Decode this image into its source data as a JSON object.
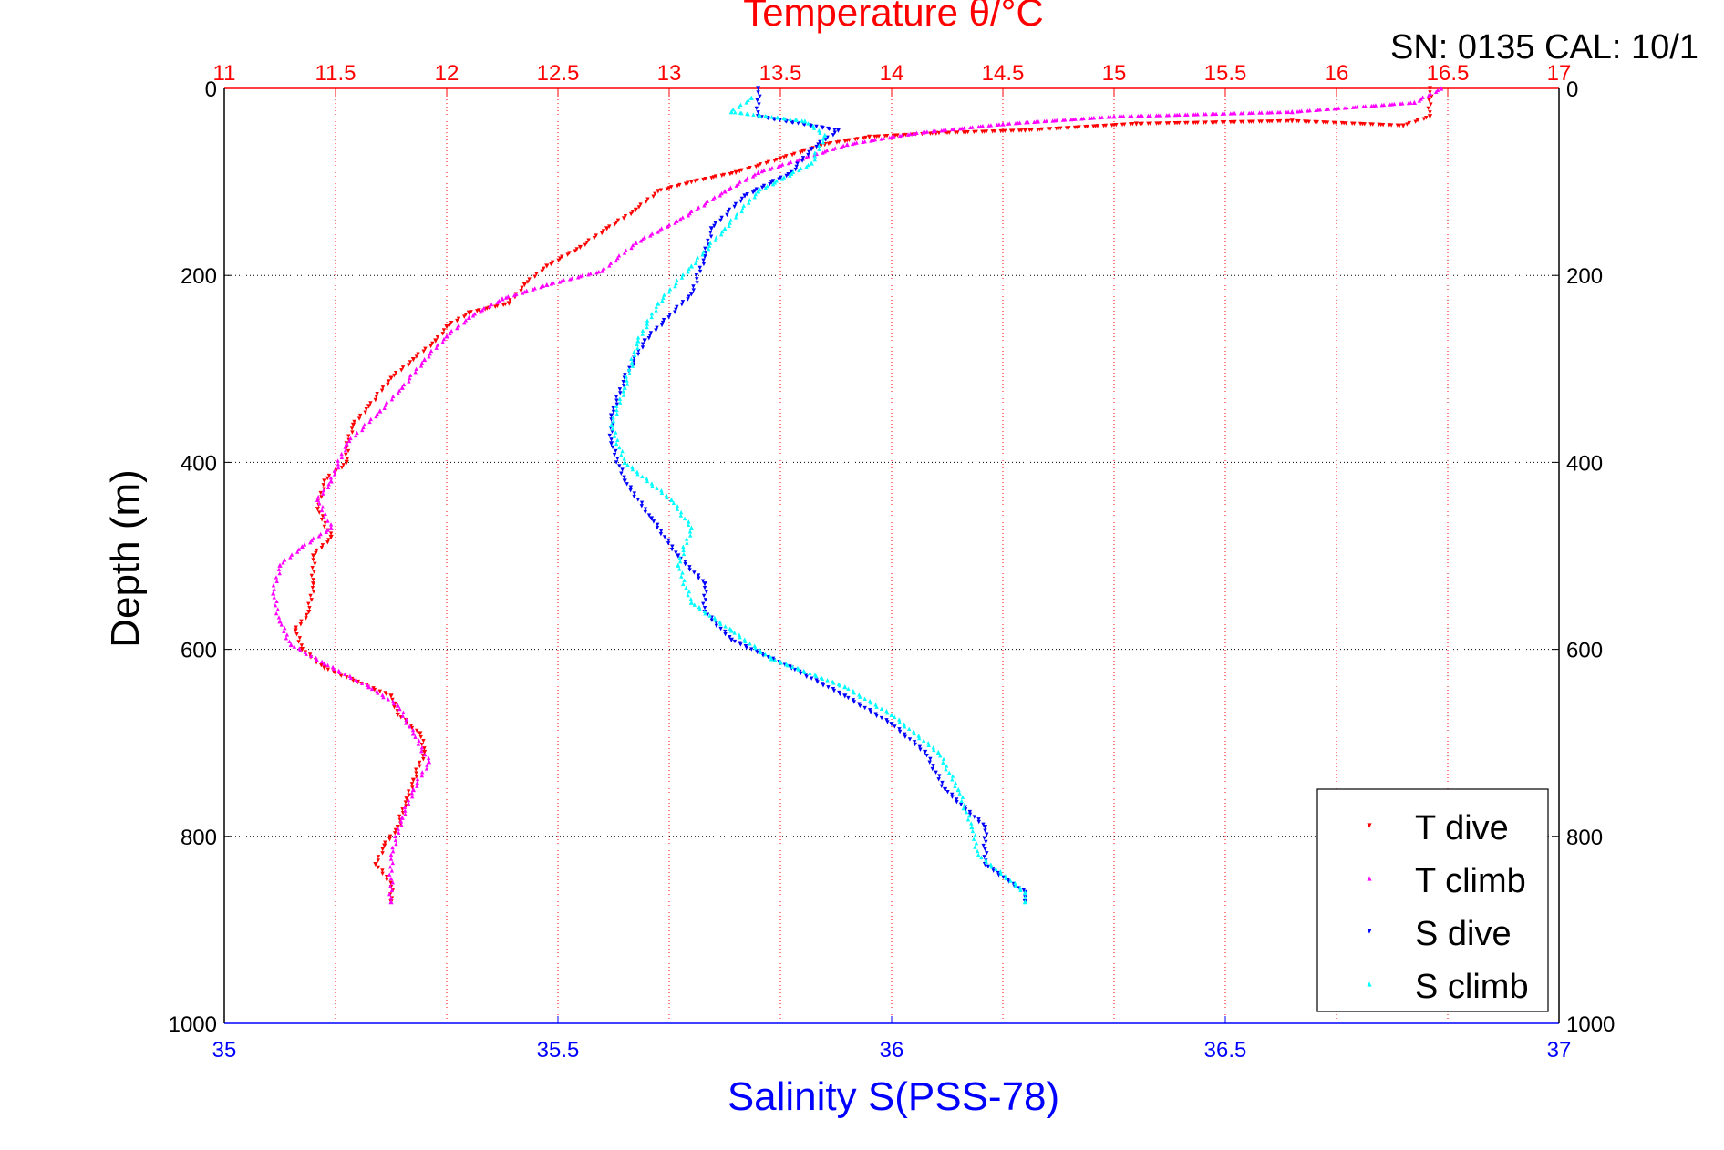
{
  "header": {
    "serial_text": "SN: 0135  CAL: 10/1"
  },
  "chart_data": {
    "type": "scatter",
    "title": "Temperature θ/°C",
    "top_axis": {
      "label": "Temperature θ/°C",
      "range": [
        11,
        17
      ],
      "ticks": [
        11,
        11.5,
        12,
        12.5,
        13,
        13.5,
        14,
        14.5,
        15,
        15.5,
        16,
        16.5,
        17
      ],
      "tick_labels": [
        "11",
        "11.5",
        "12",
        "12.5",
        "13",
        "13.5",
        "14",
        "14.5",
        "15",
        "15.5",
        "16",
        "16.5",
        "17"
      ],
      "color": "#ff0000"
    },
    "bottom_axis": {
      "label": "Salinity S(PSS-78)",
      "range": [
        35,
        37
      ],
      "ticks": [
        35,
        35.5,
        36,
        36.5,
        37
      ],
      "tick_labels": [
        "35",
        "35.5",
        "36",
        "36.5",
        "37"
      ],
      "color": "#0000ff"
    },
    "y_axis": {
      "label": "Depth (m)",
      "range": [
        0,
        1000
      ],
      "inverted": true,
      "ticks": [
        0,
        200,
        400,
        600,
        800,
        1000
      ],
      "tick_labels": [
        "0",
        "200",
        "400",
        "600",
        "800",
        "1000"
      ]
    },
    "grid": true,
    "legend": {
      "placement": "bottom-right",
      "entries": [
        "T dive",
        "T climb",
        "S dive",
        "S climb"
      ]
    },
    "series": [
      {
        "name": "T dive",
        "axis": "temperature",
        "color": "#ff0000",
        "marker": "triangle-down",
        "points": [
          [
            16.42,
            0
          ],
          [
            16.42,
            30
          ],
          [
            16.3,
            40
          ],
          [
            15.8,
            35
          ],
          [
            15.1,
            38
          ],
          [
            14.6,
            45
          ],
          [
            14.2,
            48
          ],
          [
            13.9,
            52
          ],
          [
            13.7,
            60
          ],
          [
            13.5,
            75
          ],
          [
            13.3,
            90
          ],
          [
            13.1,
            100
          ],
          [
            12.95,
            110
          ],
          [
            12.85,
            130
          ],
          [
            12.72,
            150
          ],
          [
            12.6,
            170
          ],
          [
            12.45,
            190
          ],
          [
            12.35,
            210
          ],
          [
            12.28,
            230
          ],
          [
            12.1,
            240
          ],
          [
            12.0,
            255
          ],
          [
            11.95,
            270
          ],
          [
            11.85,
            290
          ],
          [
            11.75,
            310
          ],
          [
            11.65,
            340
          ],
          [
            11.58,
            360
          ],
          [
            11.55,
            380
          ],
          [
            11.55,
            400
          ],
          [
            11.45,
            420
          ],
          [
            11.42,
            450
          ],
          [
            11.48,
            480
          ],
          [
            11.4,
            500
          ],
          [
            11.4,
            530
          ],
          [
            11.38,
            560
          ],
          [
            11.32,
            580
          ],
          [
            11.35,
            600
          ],
          [
            11.45,
            620
          ],
          [
            11.6,
            635
          ],
          [
            11.75,
            650
          ],
          [
            11.78,
            670
          ],
          [
            11.88,
            690
          ],
          [
            11.9,
            710
          ],
          [
            11.85,
            740
          ],
          [
            11.82,
            760
          ],
          [
            11.78,
            790
          ],
          [
            11.72,
            810
          ],
          [
            11.68,
            830
          ],
          [
            11.75,
            850
          ],
          [
            11.75,
            870
          ]
        ]
      },
      {
        "name": "T climb",
        "axis": "temperature",
        "color": "#ff00ff",
        "marker": "triangle-up",
        "points": [
          [
            16.47,
            0
          ],
          [
            16.35,
            15
          ],
          [
            15.8,
            25
          ],
          [
            15.0,
            30
          ],
          [
            14.5,
            38
          ],
          [
            14.1,
            48
          ],
          [
            13.8,
            60
          ],
          [
            13.6,
            75
          ],
          [
            13.4,
            90
          ],
          [
            13.25,
            110
          ],
          [
            13.05,
            140
          ],
          [
            12.85,
            165
          ],
          [
            12.7,
            195
          ],
          [
            12.45,
            210
          ],
          [
            12.25,
            225
          ],
          [
            12.1,
            245
          ],
          [
            12.0,
            265
          ],
          [
            11.9,
            290
          ],
          [
            11.8,
            320
          ],
          [
            11.7,
            345
          ],
          [
            11.55,
            380
          ],
          [
            11.48,
            420
          ],
          [
            11.42,
            440
          ],
          [
            11.48,
            470
          ],
          [
            11.35,
            490
          ],
          [
            11.25,
            510
          ],
          [
            11.22,
            540
          ],
          [
            11.25,
            570
          ],
          [
            11.3,
            595
          ],
          [
            11.45,
            615
          ],
          [
            11.65,
            640
          ],
          [
            11.78,
            660
          ],
          [
            11.85,
            690
          ],
          [
            11.92,
            720
          ],
          [
            11.85,
            750
          ],
          [
            11.8,
            780
          ],
          [
            11.75,
            820
          ],
          [
            11.75,
            870
          ]
        ]
      },
      {
        "name": "S dive",
        "axis": "salinity",
        "color": "#0000ff",
        "marker": "triangle-down",
        "points": [
          [
            35.8,
            0
          ],
          [
            35.8,
            30
          ],
          [
            35.92,
            45
          ],
          [
            35.88,
            65
          ],
          [
            35.85,
            90
          ],
          [
            35.78,
            115
          ],
          [
            35.73,
            150
          ],
          [
            35.72,
            180
          ],
          [
            35.7,
            220
          ],
          [
            35.63,
            270
          ],
          [
            35.6,
            310
          ],
          [
            35.58,
            350
          ],
          [
            35.58,
            380
          ],
          [
            35.6,
            420
          ],
          [
            35.64,
            460
          ],
          [
            35.68,
            500
          ],
          [
            35.72,
            530
          ],
          [
            35.72,
            560
          ],
          [
            35.76,
            590
          ],
          [
            35.85,
            620
          ],
          [
            35.93,
            650
          ],
          [
            36.0,
            680
          ],
          [
            36.05,
            710
          ],
          [
            36.08,
            750
          ],
          [
            36.14,
            790
          ],
          [
            36.14,
            830
          ],
          [
            36.2,
            860
          ],
          [
            36.2,
            870
          ]
        ]
      },
      {
        "name": "S climb",
        "axis": "salinity",
        "color": "#00ffff",
        "marker": "triangle-up",
        "points": [
          [
            35.79,
            10
          ],
          [
            35.76,
            25
          ],
          [
            35.87,
            35
          ],
          [
            35.9,
            50
          ],
          [
            35.88,
            80
          ],
          [
            35.8,
            110
          ],
          [
            35.75,
            150
          ],
          [
            35.7,
            190
          ],
          [
            35.65,
            230
          ],
          [
            35.62,
            270
          ],
          [
            35.6,
            320
          ],
          [
            35.58,
            360
          ],
          [
            35.6,
            400
          ],
          [
            35.67,
            440
          ],
          [
            35.7,
            470
          ],
          [
            35.68,
            510
          ],
          [
            35.7,
            550
          ],
          [
            35.76,
            580
          ],
          [
            35.82,
            610
          ],
          [
            35.93,
            640
          ],
          [
            36.0,
            670
          ],
          [
            36.07,
            710
          ],
          [
            36.1,
            750
          ],
          [
            36.12,
            790
          ],
          [
            36.13,
            820
          ],
          [
            36.2,
            860
          ],
          [
            36.2,
            870
          ]
        ]
      }
    ]
  }
}
